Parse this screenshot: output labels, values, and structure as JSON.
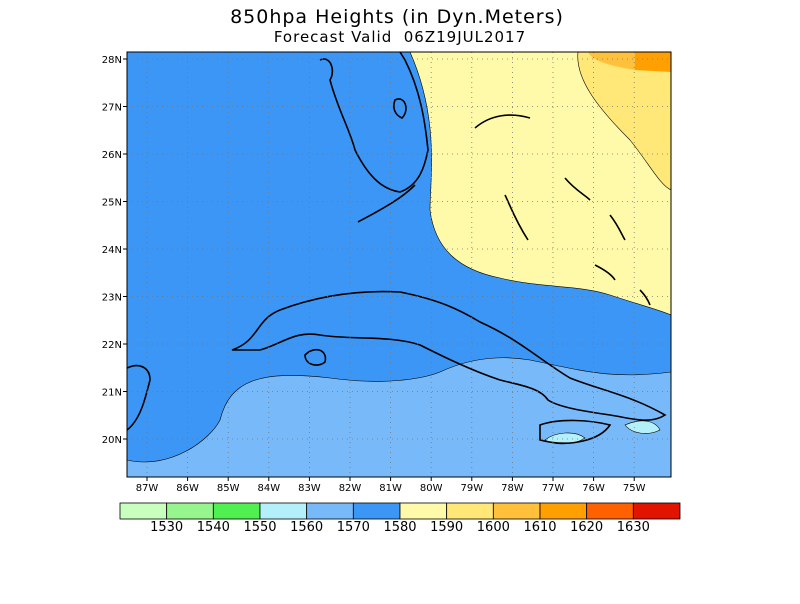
{
  "header": {
    "title": "850hpa Heights (in Dyn.Meters)",
    "subtitle": "Forecast Valid  06Z19JUL2017"
  },
  "map": {
    "lat_labels": [
      "28N",
      "27N",
      "26N",
      "25N",
      "24N",
      "23N",
      "22N",
      "21N",
      "20N"
    ],
    "lon_labels": [
      "87W",
      "86W",
      "85W",
      "84W",
      "83W",
      "82W",
      "81W",
      "80W",
      "79W",
      "78W",
      "77W",
      "76W",
      "75W"
    ]
  },
  "colorbar": {
    "colors": [
      "#c8ffbe",
      "#96f58c",
      "#50f050",
      "#b4f0fa",
      "#78b9fa",
      "#3c96f5",
      "#fffaaa",
      "#ffe878",
      "#ffc03c",
      "#ffa000",
      "#ff6000",
      "#e11400"
    ],
    "labels": [
      "1530",
      "1540",
      "1550",
      "1560",
      "1570",
      "1580",
      "1590",
      "1600",
      "1610",
      "1620",
      "1630"
    ]
  }
}
